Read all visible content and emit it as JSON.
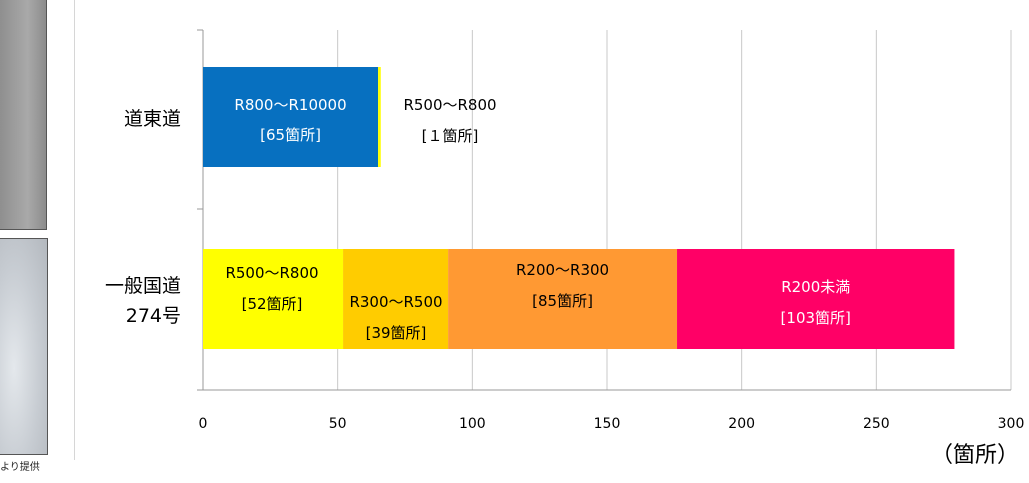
{
  "photos": {
    "credit_text": "より提供"
  },
  "chart_data": {
    "type": "bar",
    "orientation": "horizontal",
    "stacked": true,
    "xlim": [
      0,
      300
    ],
    "x_ticks": [
      "0",
      "50",
      "100",
      "150",
      "200",
      "250",
      "300"
    ],
    "x_unit": "（箇所）",
    "grid": true,
    "categories": [
      {
        "label_lines": [
          "道東道"
        ]
      },
      {
        "label_lines": [
          "一般国道",
          "274号"
        ]
      }
    ],
    "series": [
      {
        "category_index": 0,
        "value": 65,
        "color": "#0770c0",
        "label_color": "#ffffff",
        "label_lines": [
          "R800～R10000",
          "[65箇所]"
        ]
      },
      {
        "category_index": 0,
        "value": 1,
        "color": "#ffff00",
        "label_color": "#000000",
        "label_lines": [
          "R500～R800",
          "[１箇所]"
        ]
      },
      {
        "category_index": 1,
        "value": 52,
        "color": "#ffff00",
        "label_color": "#000000",
        "label_lines": [
          "R500～R800",
          "[52箇所]"
        ]
      },
      {
        "category_index": 1,
        "value": 39,
        "color": "#ffcc00",
        "label_color": "#000000",
        "label_lines": [
          "R300～R500",
          "[39箇所]"
        ]
      },
      {
        "category_index": 1,
        "value": 85,
        "color": "#ff9933",
        "label_color": "#000000",
        "label_lines": [
          "R200～R300",
          "[85箇所]"
        ]
      },
      {
        "category_index": 1,
        "value": 103,
        "color": "#ff0066",
        "label_color": "#ffffff",
        "label_lines": [
          "R200未満",
          "[103箇所]"
        ]
      }
    ]
  }
}
